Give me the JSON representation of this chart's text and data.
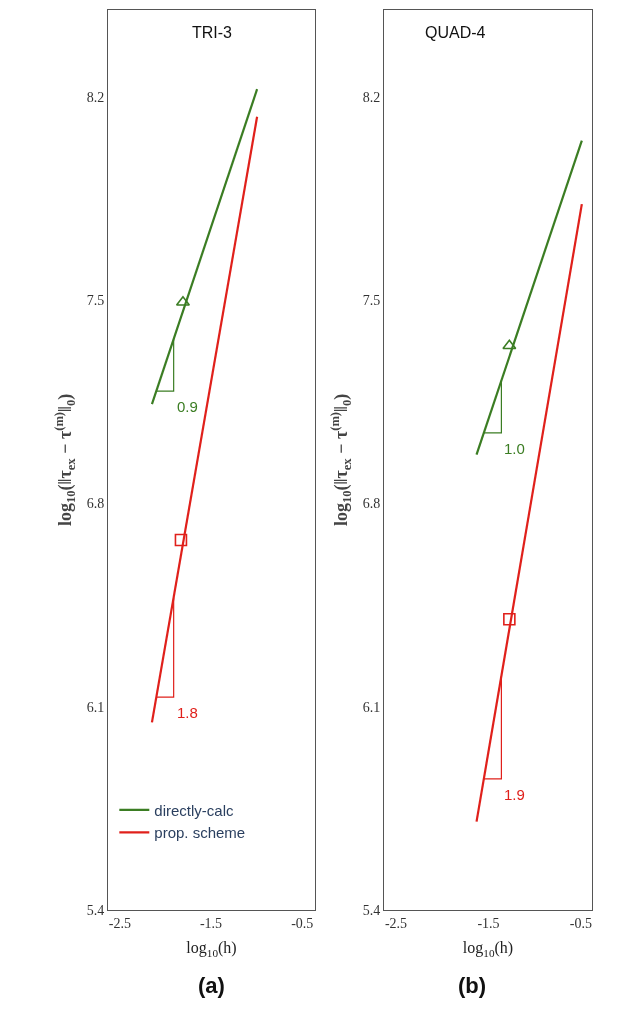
{
  "chart_data": [
    {
      "type": "line",
      "title": "TRI-3",
      "xlabel": "log$_{10}$(h)",
      "ylabel": "log$_{10}$(‖τ$_{ex}$ − τ$^{(m)}$‖$_{0}$)",
      "xlim": [
        -2.63,
        -0.36
      ],
      "ylim": [
        5.4,
        8.5
      ],
      "xticks": [
        -2.5,
        -1.5,
        -0.5
      ],
      "yticks": [
        5.4,
        6.1,
        6.8,
        7.5,
        8.2
      ],
      "legend": "bottom left",
      "line_style": "solid",
      "series": [
        {
          "name": "directly-calc",
          "color": "#3b7d23",
          "x": [
            -2.148,
            -0.995
          ],
          "values": [
            7.142,
            8.227
          ]
        },
        {
          "name": "prop. scheme",
          "color": "#e0201b",
          "x": [
            -2.148,
            -0.995
          ],
          "values": [
            6.046,
            8.132
          ]
        },
        {
          "type": "scatter",
          "color": "#3b7d23",
          "marker": "triangle",
          "x": [
            -1.808
          ],
          "values": [
            7.493
          ]
        },
        {
          "type": "scatter",
          "color": "#e0201b",
          "marker": "square",
          "x": [
            -1.83
          ],
          "values": [
            6.674
          ]
        },
        {
          "color": "#3b7d23",
          "x": [
            -2.1,
            -1.91,
            -1.91
          ],
          "values": [
            7.187,
            7.187,
            7.366
          ]
        },
        {
          "color": "#e0201b",
          "x": [
            -2.1,
            -1.91,
            -1.91
          ],
          "values": [
            6.133,
            6.133,
            6.477
          ]
        }
      ],
      "annotations": [
        "0.9",
        "1.8",
        "(a)"
      ]
    },
    {
      "type": "line",
      "title": "QUAD-4",
      "xlabel": "log$_{10}$(h)",
      "ylabel": "log$_{10}$(‖τ$_{ex}$ − τ$^{(m)}$‖$_{0}$)",
      "xlim": [
        -2.63,
        -0.38
      ],
      "ylim": [
        5.4,
        8.5
      ],
      "xticks": [
        -2.5,
        -1.5,
        -0.5
      ],
      "yticks": [
        5.4,
        6.1,
        6.8,
        7.5,
        8.2
      ],
      "legend": false,
      "line_style": "solid",
      "series": [
        {
          "color": "#3b7d23",
          "x": [
            -1.629,
            -0.49
          ],
          "values": [
            6.968,
            8.05
          ]
        },
        {
          "color": "#e0201b",
          "x": [
            -1.629,
            -0.49
          ],
          "values": [
            5.704,
            7.831
          ]
        },
        {
          "type": "scatter",
          "color": "#3b7d23",
          "marker": "triangle",
          "x": [
            -1.274
          ],
          "values": [
            7.343
          ]
        },
        {
          "type": "scatter",
          "color": "#e0201b",
          "marker": "square",
          "x": [
            -1.274
          ],
          "values": [
            6.401
          ]
        },
        {
          "color": "#3b7d23",
          "x": [
            -1.55,
            -1.36,
            -1.36
          ],
          "values": [
            7.043,
            7.043,
            7.224
          ]
        },
        {
          "color": "#e0201b",
          "x": [
            -1.55,
            -1.36,
            -1.36
          ],
          "values": [
            5.851,
            5.851,
            6.206
          ]
        }
      ],
      "annotations": [
        "1.0",
        "1.9",
        "(b)"
      ]
    }
  ]
}
